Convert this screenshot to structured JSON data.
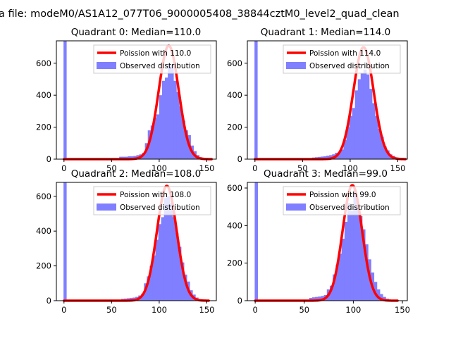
{
  "figure": {
    "suptitle": "a file: modeM0/AS1A12_077T06_9000005408_38844cztM0_level2_quad_clean",
    "colors": {
      "fit": "#ff0000",
      "observed": "#7f7fff",
      "axis": "#000000"
    }
  },
  "chart_data": [
    {
      "type": "bar",
      "title": "Quadrant 0: Median=110.0",
      "xlabel": "",
      "ylabel": "",
      "xlim": [
        -8,
        160
      ],
      "ylim": [
        0,
        740
      ],
      "xticks": [
        0,
        50,
        100,
        150
      ],
      "yticks": [
        0,
        200,
        400,
        600
      ],
      "legend": {
        "placement": "top-right"
      },
      "series": [
        {
          "name": "Poission with 110.0",
          "kind": "line",
          "mean": 110.0,
          "x_range": [
            0,
            155
          ],
          "peak": 710
        },
        {
          "name": "Observed distribution",
          "kind": "histogram",
          "bin_width": 3.3,
          "bins": [
            [
              -0.5,
              740
            ],
            [
              58,
              15
            ],
            [
              61,
              15
            ],
            [
              64,
              15
            ],
            [
              67,
              18
            ],
            [
              70,
              18
            ],
            [
              73,
              20
            ],
            [
              76,
              25
            ],
            [
              79,
              30
            ],
            [
              82,
              40
            ],
            [
              85,
              100
            ],
            [
              88,
              180
            ],
            [
              91,
              210
            ],
            [
              94,
              260
            ],
            [
              97,
              280
            ],
            [
              100,
              400
            ],
            [
              103,
              490
            ],
            [
              106,
              510
            ],
            [
              109,
              600
            ],
            [
              112,
              590
            ],
            [
              115,
              490
            ],
            [
              118,
              420
            ],
            [
              121,
              330
            ],
            [
              124,
              240
            ],
            [
              127,
              180
            ],
            [
              130,
              150
            ],
            [
              133,
              85
            ],
            [
              136,
              50
            ],
            [
              139,
              25
            ],
            [
              142,
              12
            ],
            [
              145,
              6
            ],
            [
              148,
              3
            ]
          ]
        }
      ]
    },
    {
      "type": "bar",
      "title": "Quadrant 1: Median=114.0",
      "xlabel": "",
      "ylabel": "",
      "xlim": [
        -8,
        160
      ],
      "ylim": [
        0,
        740
      ],
      "xticks": [
        0,
        50,
        100,
        150
      ],
      "yticks": [
        0,
        200,
        400,
        600
      ],
      "legend": {
        "placement": "top-right"
      },
      "series": [
        {
          "name": "Poission with 114.0",
          "kind": "line",
          "mean": 114.0,
          "x_range": [
            0,
            158
          ],
          "peak": 700
        },
        {
          "name": "Observed distribution",
          "kind": "histogram",
          "bin_width": 3.3,
          "bins": [
            [
              -0.5,
              740
            ],
            [
              60,
              10
            ],
            [
              63,
              12
            ],
            [
              66,
              14
            ],
            [
              69,
              16
            ],
            [
              72,
              18
            ],
            [
              75,
              22
            ],
            [
              78,
              25
            ],
            [
              81,
              30
            ],
            [
              84,
              40
            ],
            [
              87,
              45
            ],
            [
              90,
              60
            ],
            [
              93,
              120
            ],
            [
              96,
              200
            ],
            [
              99,
              270
            ],
            [
              102,
              320
            ],
            [
              105,
              430
            ],
            [
              108,
              500
            ],
            [
              111,
              540
            ],
            [
              114,
              560
            ],
            [
              117,
              530
            ],
            [
              120,
              440
            ],
            [
              123,
              350
            ],
            [
              126,
              270
            ],
            [
              129,
              190
            ],
            [
              132,
              140
            ],
            [
              135,
              80
            ],
            [
              138,
              55
            ],
            [
              141,
              30
            ],
            [
              144,
              20
            ],
            [
              147,
              10
            ]
          ]
        }
      ]
    },
    {
      "type": "bar",
      "title": "Quadrant 2: Median=108.0",
      "xlabel": "",
      "ylabel": "",
      "xlim": [
        -8,
        160
      ],
      "ylim": [
        0,
        680
      ],
      "xticks": [
        0,
        50,
        100,
        150
      ],
      "yticks": [
        0,
        200,
        400,
        600
      ],
      "legend": {
        "placement": "top-right"
      },
      "series": [
        {
          "name": "Poission with 108.0",
          "kind": "line",
          "mean": 108.0,
          "x_range": [
            0,
            152
          ],
          "peak": 660
        },
        {
          "name": "Observed distribution",
          "kind": "histogram",
          "bin_width": 3.3,
          "bins": [
            [
              -0.5,
              680
            ],
            [
              60,
              10
            ],
            [
              63,
              12
            ],
            [
              66,
              14
            ],
            [
              69,
              16
            ],
            [
              72,
              18
            ],
            [
              75,
              22
            ],
            [
              78,
              30
            ],
            [
              81,
              40
            ],
            [
              84,
              100
            ],
            [
              87,
              140
            ],
            [
              90,
              200
            ],
            [
              93,
              260
            ],
            [
              96,
              350
            ],
            [
              99,
              440
            ],
            [
              102,
              480
            ],
            [
              105,
              590
            ],
            [
              108,
              600
            ],
            [
              111,
              560
            ],
            [
              114,
              480
            ],
            [
              117,
              390
            ],
            [
              120,
              310
            ],
            [
              123,
              220
            ],
            [
              126,
              150
            ],
            [
              129,
              110
            ],
            [
              132,
              60
            ],
            [
              135,
              35
            ],
            [
              138,
              18
            ],
            [
              141,
              8
            ],
            [
              144,
              4
            ]
          ]
        }
      ]
    },
    {
      "type": "bar",
      "title": "Quadrant 3: Median=99.0",
      "xlabel": "",
      "ylabel": "",
      "xlim": [
        -8,
        155
      ],
      "ylim": [
        0,
        630
      ],
      "xticks": [
        0,
        50,
        100,
        150
      ],
      "yticks": [
        0,
        200,
        400,
        600
      ],
      "legend": {
        "placement": "top-right"
      },
      "series": [
        {
          "name": "Poission with 99.0",
          "kind": "line",
          "mean": 99.0,
          "x_range": [
            0,
            145
          ],
          "peak": 615
        },
        {
          "name": "Observed distribution",
          "kind": "histogram",
          "bin_width": 3.3,
          "bins": [
            [
              -0.5,
              630
            ],
            [
              55,
              15
            ],
            [
              58,
              18
            ],
            [
              61,
              20
            ],
            [
              64,
              22
            ],
            [
              67,
              25
            ],
            [
              70,
              30
            ],
            [
              73,
              60
            ],
            [
              76,
              80
            ],
            [
              79,
              140
            ],
            [
              82,
              190
            ],
            [
              85,
              250
            ],
            [
              88,
              330
            ],
            [
              91,
              420
            ],
            [
              94,
              520
            ],
            [
              97,
              480
            ],
            [
              100,
              590
            ],
            [
              103,
              500
            ],
            [
              106,
              450
            ],
            [
              109,
              380
            ],
            [
              112,
              300
            ],
            [
              115,
              220
            ],
            [
              118,
              150
            ],
            [
              121,
              100
            ],
            [
              124,
              60
            ],
            [
              127,
              35
            ],
            [
              130,
              20
            ],
            [
              133,
              10
            ],
            [
              136,
              5
            ]
          ]
        }
      ]
    }
  ]
}
